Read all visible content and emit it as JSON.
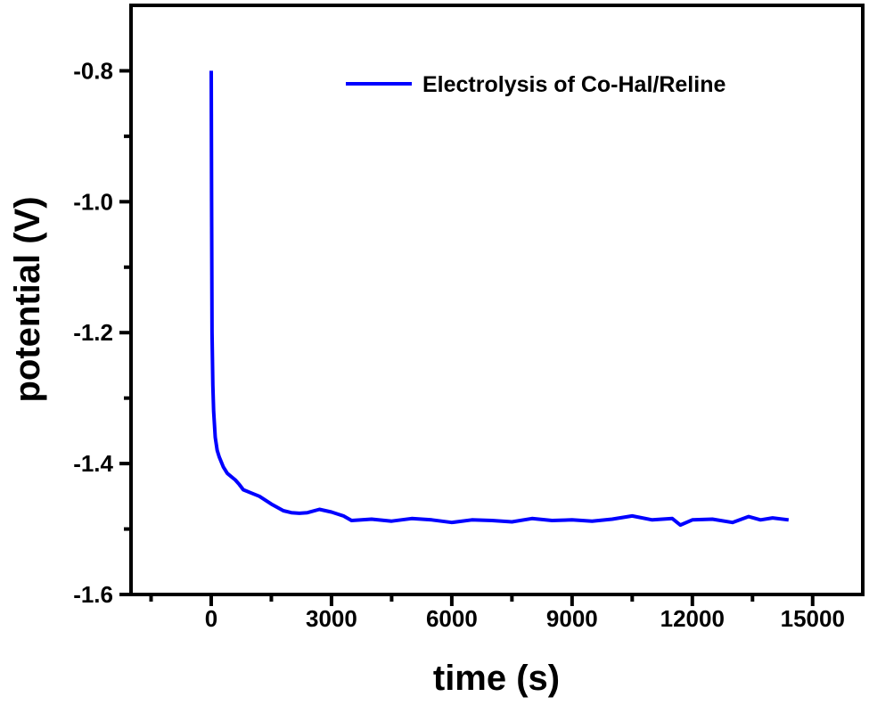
{
  "chart_data": {
    "type": "line",
    "title": "",
    "xlabel": "time (s)",
    "ylabel": "potential (V)",
    "xlim": [
      -2000,
      16250
    ],
    "ylim": [
      -1.6,
      -0.7
    ],
    "xticks": [
      0,
      3000,
      6000,
      9000,
      12000,
      15000
    ],
    "xtick_labels": [
      "0",
      "3000",
      "6000",
      "9000",
      "12000",
      "15000"
    ],
    "yticks": [
      -0.8,
      -1.0,
      -1.2,
      -1.4,
      -1.6
    ],
    "ytick_labels": [
      "-0.8",
      "-1.0",
      "-1.2",
      "-1.4",
      "-1.6"
    ],
    "grid": false,
    "legend_position": "top-right",
    "series": [
      {
        "name": "Electrolysis of Co-Hal/Reline",
        "color": "#0000ff",
        "x": [
          0,
          10,
          20,
          40,
          60,
          100,
          150,
          200,
          300,
          400,
          500,
          600,
          700,
          800,
          1000,
          1200,
          1500,
          1800,
          2000,
          2200,
          2400,
          2700,
          3000,
          3300,
          3500,
          4000,
          4500,
          5000,
          5500,
          6000,
          6500,
          7000,
          7500,
          8000,
          8500,
          9000,
          9500,
          10000,
          10500,
          11000,
          11500,
          11700,
          12000,
          12500,
          13000,
          13400,
          13700,
          14000,
          14400
        ],
        "y": [
          -0.8,
          -1.0,
          -1.2,
          -1.28,
          -1.32,
          -1.36,
          -1.38,
          -1.39,
          -1.405,
          -1.415,
          -1.42,
          -1.425,
          -1.432,
          -1.44,
          -1.445,
          -1.45,
          -1.462,
          -1.472,
          -1.475,
          -1.476,
          -1.475,
          -1.47,
          -1.474,
          -1.48,
          -1.487,
          -1.485,
          -1.488,
          -1.484,
          -1.486,
          -1.49,
          -1.486,
          -1.487,
          -1.489,
          -1.484,
          -1.487,
          -1.486,
          -1.488,
          -1.485,
          -1.48,
          -1.486,
          -1.484,
          -1.494,
          -1.486,
          -1.485,
          -1.49,
          -1.481,
          -1.486,
          -1.483,
          -1.486
        ]
      }
    ]
  }
}
